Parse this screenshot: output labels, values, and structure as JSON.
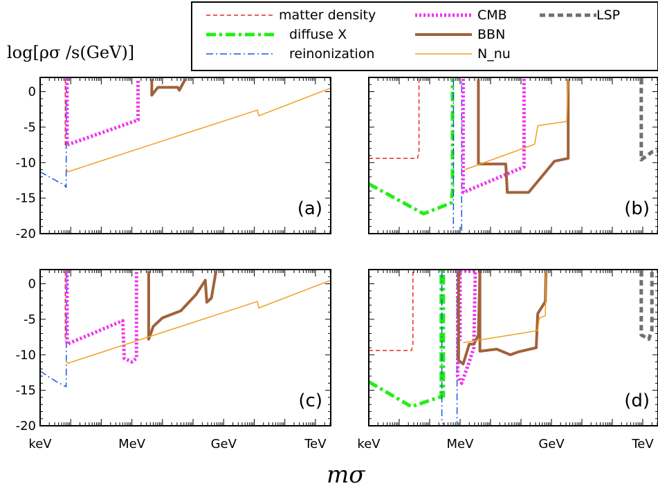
{
  "chart_data": {
    "type": "line",
    "ylabel": "log[ρσ /s(GeV)]",
    "xlabel": "mσ",
    "legend": {
      "placement": "top",
      "entries": [
        {
          "name": "matter density",
          "color": "#e8291c",
          "style": "dashed"
        },
        {
          "name": "diffuse X",
          "color": "#22ee14",
          "style": "dash-dot-thick"
        },
        {
          "name": "reinonization",
          "color": "#1a55e0",
          "style": "dash-dot"
        },
        {
          "name": "CMB",
          "color": "#ee33ee",
          "style": "dotted-thick"
        },
        {
          "name": "BBN",
          "color": "#a0623a",
          "style": "solid-thick"
        },
        {
          "name": "N_nu",
          "color": "#f0a020",
          "style": "solid"
        },
        {
          "name": "LSP",
          "color": "#707070",
          "style": "dashed-thick"
        }
      ]
    },
    "x_scale": "log10(m/GeV)",
    "xlim": [
      -6,
      3.5
    ],
    "ylim": [
      -20,
      2
    ],
    "yticks": [
      0,
      -5,
      -10,
      -15,
      -20
    ],
    "xtick_labels": [
      {
        "value": -6,
        "label": "keV"
      },
      {
        "value": -3,
        "label": "MeV"
      },
      {
        "value": 0,
        "label": "GeV"
      },
      {
        "value": 3,
        "label": "TeV"
      }
    ],
    "panels": [
      {
        "id": "a",
        "label": "(a)",
        "series": [
          {
            "name": "reinonization",
            "points": [
              [
                -6,
                -11.3
              ],
              [
                -5.2,
                -13.2
              ],
              [
                -5.15,
                -13.5
              ],
              [
                -5.14,
                1.8
              ]
            ]
          },
          {
            "name": "matter density",
            "points": [
              [
                -5.18,
                1.8
              ],
              [
                -5.18,
                -8
              ]
            ]
          },
          {
            "name": "CMB",
            "points": [
              [
                -5.12,
                1.8
              ],
              [
                -5.12,
                -7.5
              ],
              [
                -2.8,
                -4.0
              ],
              [
                -2.8,
                1.8
              ]
            ]
          },
          {
            "name": "BBN",
            "points": [
              [
                -2.35,
                1.8
              ],
              [
                -2.35,
                -0.5
              ],
              [
                -2.15,
                0.6
              ],
              [
                -1.5,
                0.6
              ],
              [
                -1.45,
                0.2
              ],
              [
                -1.25,
                1.8
              ]
            ]
          },
          {
            "name": "N_nu",
            "points": [
              [
                -5.15,
                -10.8
              ],
              [
                -5.1,
                -11.3
              ],
              [
                1.1,
                -2.6
              ],
              [
                1.15,
                -3.4
              ],
              [
                3.5,
                0.5
              ]
            ]
          }
        ]
      },
      {
        "id": "b",
        "label": "(b)",
        "series": [
          {
            "name": "matter density",
            "points": [
              [
                -6,
                -9.4
              ],
              [
                -4.4,
                -9.4
              ],
              [
                -4.35,
                -8.5
              ],
              [
                -4.35,
                1.8
              ]
            ]
          },
          {
            "name": "diffuse X",
            "points": [
              [
                -6,
                -13
              ],
              [
                -4.2,
                -17.2
              ],
              [
                -3.3,
                -15.7
              ],
              [
                -3.25,
                -14
              ],
              [
                -3.25,
                1.8
              ]
            ]
          },
          {
            "name": "reinonization",
            "points": [
              [
                -3.22,
                1.8
              ],
              [
                -3.22,
                -20
              ],
              [
                -2.95,
                -20
              ],
              [
                -2.95,
                1.8
              ]
            ]
          },
          {
            "name": "CMB",
            "points": [
              [
                -2.9,
                1.8
              ],
              [
                -2.9,
                -14.2
              ],
              [
                -0.9,
                -10.6
              ],
              [
                -0.9,
                1.8
              ]
            ]
          },
          {
            "name": "BBN",
            "points": [
              [
                -2.4,
                1.8
              ],
              [
                -2.4,
                -10.2
              ],
              [
                -1.5,
                -10.2
              ],
              [
                -1.45,
                -14.2
              ],
              [
                -0.75,
                -14.2
              ],
              [
                0.1,
                -9.8
              ],
              [
                0.55,
                -9.4
              ],
              [
                0.55,
                1.8
              ]
            ]
          },
          {
            "name": "N_nu",
            "points": [
              [
                -2.85,
                -11.0
              ],
              [
                -0.55,
                -7.4
              ],
              [
                -0.45,
                -4.8
              ],
              [
                0.5,
                -4.2
              ],
              [
                0.55,
                1.8
              ]
            ]
          },
          {
            "name": "LSP",
            "points": [
              [
                2.95,
                1.8
              ],
              [
                2.95,
                -9.6
              ],
              [
                3.3,
                -8.5
              ],
              [
                3.5,
                -8.4
              ]
            ]
          }
        ]
      },
      {
        "id": "c",
        "label": "(c)",
        "series": [
          {
            "name": "reinonization",
            "points": [
              [
                -6,
                -12.3
              ],
              [
                -5.5,
                -13.7
              ],
              [
                -5.15,
                -14.5
              ],
              [
                -5.13,
                1.8
              ]
            ]
          },
          {
            "name": "matter density",
            "points": [
              [
                -5.18,
                1.8
              ],
              [
                -5.18,
                -8
              ]
            ]
          },
          {
            "name": "CMB",
            "points": [
              [
                -5.12,
                1.8
              ],
              [
                -5.12,
                -8.5
              ],
              [
                -3.3,
                -5.2
              ],
              [
                -3.25,
                -10.5
              ],
              [
                -3.0,
                -11.0
              ],
              [
                -2.85,
                -10.5
              ],
              [
                -2.85,
                1.8
              ]
            ]
          },
          {
            "name": "BBN",
            "points": [
              [
                -2.45,
                1.8
              ],
              [
                -2.45,
                -7.8
              ],
              [
                -2.3,
                -6.0
              ],
              [
                -2.0,
                -4.8
              ],
              [
                -1.4,
                -3.8
              ],
              [
                -0.9,
                -1.5
              ],
              [
                -0.6,
                0.5
              ],
              [
                -0.55,
                -2.6
              ],
              [
                -0.4,
                -2.0
              ],
              [
                -0.25,
                1.8
              ]
            ]
          },
          {
            "name": "N_nu",
            "points": [
              [
                -5.15,
                -10.8
              ],
              [
                -5.1,
                -11.2
              ],
              [
                1.1,
                -2.5
              ],
              [
                1.15,
                -3.4
              ],
              [
                3.5,
                0.5
              ]
            ]
          }
        ]
      },
      {
        "id": "d",
        "label": "(d)",
        "series": [
          {
            "name": "matter density",
            "points": [
              [
                -6,
                -9.4
              ],
              [
                -4.6,
                -9.4
              ],
              [
                -4.55,
                -8.5
              ],
              [
                -4.55,
                1.8
              ]
            ]
          },
          {
            "name": "diffuse X",
            "points": [
              [
                -6,
                -13.8
              ],
              [
                -4.6,
                -17.3
              ],
              [
                -3.7,
                -16
              ],
              [
                -3.62,
                -16
              ],
              [
                -3.62,
                1.8
              ],
              [
                -3.55,
                1.8
              ],
              [
                -3.55,
                -16
              ]
            ]
          },
          {
            "name": "reinonization",
            "points": [
              [
                -3.6,
                1.8
              ],
              [
                -3.6,
                -19.5
              ],
              [
                -3.5,
                -20
              ],
              [
                -3.1,
                -20
              ],
              [
                -3.1,
                1.8
              ]
            ]
          },
          {
            "name": "CMB",
            "points": [
              [
                -3.08,
                1.8
              ],
              [
                -3.08,
                -13
              ],
              [
                -2.95,
                -14
              ],
              [
                -2.7,
                -11
              ],
              [
                -2.55,
                -9
              ],
              [
                -2.5,
                1.8
              ],
              [
                -3.0,
                1.8
              ],
              [
                -3.0,
                -8
              ]
            ]
          },
          {
            "name": "BBN",
            "points": [
              [
                -3.05,
                1.8
              ],
              [
                -3.05,
                -10.8
              ],
              [
                -2.9,
                -11.3
              ],
              [
                -2.7,
                -8.5
              ],
              [
                -2.55,
                -8.5
              ],
              [
                -2.4,
                -7.2
              ],
              [
                -2.35,
                1.8
              ],
              [
                -2.35,
                -9.5
              ],
              [
                -1.8,
                -9.2
              ],
              [
                -1.35,
                -10
              ],
              [
                -1.1,
                -9.6
              ],
              [
                -0.5,
                -9.0
              ],
              [
                -0.45,
                -4.2
              ],
              [
                -0.2,
                -2.5
              ],
              [
                -0.18,
                1.8
              ]
            ]
          },
          {
            "name": "N_nu",
            "points": [
              [
                -2.9,
                -8.3
              ],
              [
                -0.45,
                -6.6
              ],
              [
                -0.4,
                -4.8
              ],
              [
                -0.2,
                -4.5
              ],
              [
                -0.18,
                1.8
              ]
            ]
          },
          {
            "name": "LSP",
            "points": [
              [
                2.95,
                1.8
              ],
              [
                2.95,
                -7.2
              ],
              [
                3.2,
                -7.8
              ],
              [
                3.3,
                -6.5
              ],
              [
                3.3,
                1.8
              ]
            ]
          }
        ]
      }
    ]
  }
}
